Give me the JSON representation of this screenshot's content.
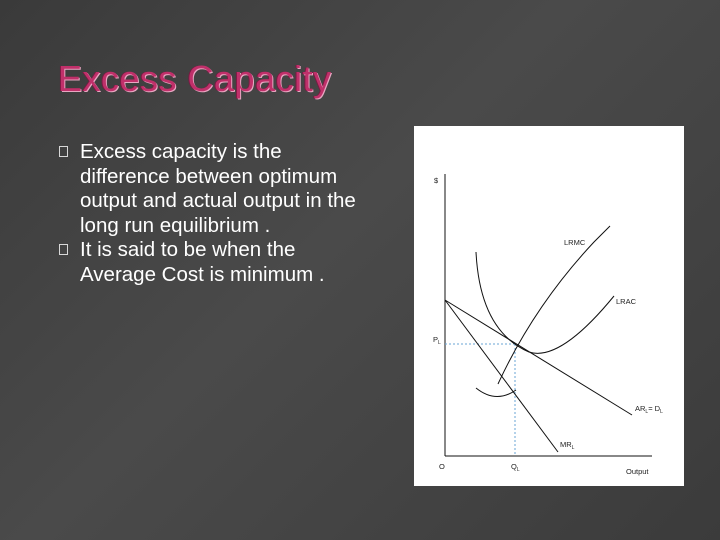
{
  "slide": {
    "title": "Excess Capacity",
    "bullets": [
      "Excess capacity is the difference between optimum output and actual output in the long run equilibrium .",
      "It is said to be when the Average Cost is minimum ."
    ]
  },
  "diagram": {
    "y_axis_label": "$",
    "origin_label": "O",
    "x_axis_label": "Output",
    "price_label": "P",
    "price_sub": "L",
    "quantity_label": "Q",
    "quantity_sub": "L",
    "lrmc_label": "LRMC",
    "lrac_label": "LRAC",
    "ar_label": "AR",
    "ar_sub": "L",
    "ar_eq": "= D",
    "ar_eq_sub": "L",
    "mr_label": "MR",
    "mr_sub": "L",
    "curves": [
      "LRMC",
      "LRAC",
      "AR = D",
      "MR"
    ],
    "colors": {
      "curves": "#111111",
      "guides": "#6aa6d6",
      "title": "#c0306a"
    }
  }
}
